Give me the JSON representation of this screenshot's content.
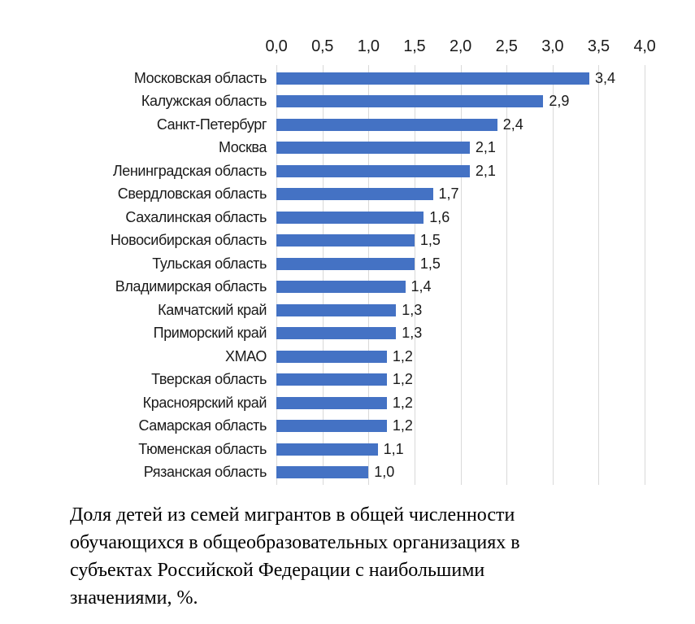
{
  "chart_data": {
    "type": "bar",
    "orientation": "horizontal",
    "title": "",
    "xlabel": "",
    "ylabel": "",
    "xlim": [
      0,
      4.0
    ],
    "x_ticks": [
      "0,0",
      "0,5",
      "1,0",
      "1,5",
      "2,0",
      "2,5",
      "3,0",
      "3,5",
      "4,0"
    ],
    "x_tick_values": [
      0,
      0.5,
      1.0,
      1.5,
      2.0,
      2.5,
      3.0,
      3.5,
      4.0
    ],
    "axis_position": "top",
    "grid": true,
    "legend": false,
    "bar_color": "#4472c4",
    "gridline_color": "#d9d9d9",
    "categories": [
      "Московская область",
      "Калужская область",
      "Санкт-Петербург",
      "Москва",
      "Ленинградская область",
      "Свердловская область",
      "Сахалинская область",
      "Новосибирская область",
      "Тульская область",
      "Владимирская область",
      "Камчатский край",
      "Приморский край",
      "ХМАО",
      "Тверская область",
      "Красноярский край",
      "Самарская область",
      "Тюменская область",
      "Рязанская область"
    ],
    "values": [
      3.4,
      2.9,
      2.4,
      2.1,
      2.1,
      1.7,
      1.6,
      1.5,
      1.5,
      1.4,
      1.3,
      1.3,
      1.2,
      1.2,
      1.2,
      1.2,
      1.1,
      1.0
    ],
    "value_labels": [
      "3,4",
      "2,9",
      "2,4",
      "2,1",
      "2,1",
      "1,7",
      "1,6",
      "1,5",
      "1,5",
      "1,4",
      "1,3",
      "1,3",
      "1,2",
      "1,2",
      "1,2",
      "1,2",
      "1,1",
      "1,0"
    ]
  },
  "caption": {
    "lines": [
      "Доля детей из семей мигрантов в общей численности",
      "обучающихся в общеобразовательных организациях в",
      "субъектах Российской Федерации с наибольшими",
      "значениями, %."
    ]
  }
}
